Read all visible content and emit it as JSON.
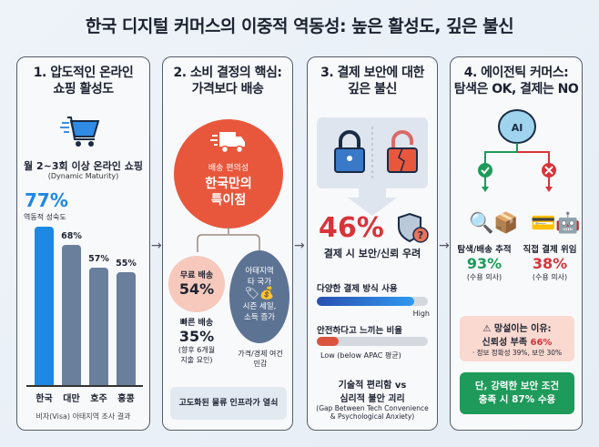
{
  "title": "한국 디지털 커머스의 이중적 역동성: 높은 활성도, 깊은 불신",
  "panel1": {
    "heading1": "1. 압도적인 온라인",
    "heading2": "쇼핑 활성도",
    "icon": "shopping-cart-icon",
    "subtitle": "월 2~3회 이상 온라인 쇼핑",
    "subtitle_en": "(Dynamic Maturity)",
    "highlight": "77%",
    "highlight_label": "역동적 성숙도",
    "source": "비자(Visa) 아태지역 조사 결과"
  },
  "chart_data": {
    "type": "bar",
    "categories": [
      "한국",
      "대만",
      "호주",
      "홍콩"
    ],
    "values": [
      77,
      68,
      57,
      55
    ],
    "labels": [
      "77%",
      "68%",
      "57%",
      "55%"
    ],
    "colors": [
      "#1e88e5",
      "#6a7f9c",
      "#6a7f9c",
      "#6a7f9c"
    ],
    "ylim": [
      0,
      100
    ],
    "grid": false
  },
  "panel2": {
    "heading1": "2. 소비 결정의 핵심:",
    "heading2": "가격보다 배송",
    "circle_sub": "배송 편의성",
    "circle_main1": "한국만의",
    "circle_main2": "특이점",
    "free_label": "무료 배송",
    "free_value": "54%",
    "fast_label": "빠른 배송",
    "fast_value": "35%",
    "fast_note1": "(향후 6개월",
    "fast_note2": "지출 요인)",
    "apac1": "아태지역",
    "apac2": "타 국가",
    "apac3": "시즌 세일,",
    "apac4": "소득 증가",
    "apac_note1": "가격/경제 여건",
    "apac_note2": "민감",
    "key": "고도화된 물류 인프라가 열쇠"
  },
  "panel3": {
    "heading1": "3. 결제 보안에 대한",
    "heading2": "깊은 불신",
    "big": "46%",
    "big_label": "결제 시 보안/신뢰 우려",
    "bar1_label": "다양한 결제 방식 사용",
    "bar1_value": 0.88,
    "bar1_note": "High",
    "bar2_label": "안전하다고 느끼는 비율",
    "bar2_value": 0.2,
    "bar2_note": "Low (below APAC 평균)",
    "gap1": "기술적 편리함 vs",
    "gap2": "심리적 불안 괴리",
    "gap_en1": "(Gap Between Tech Convenience",
    "gap_en2": "& Psychological Anxiety)"
  },
  "panel4": {
    "heading1": "4. 에이전틱 커머스:",
    "heading2": "탐색은 OK, 결제는 NO",
    "ai": "AI",
    "left_label": "탐색/배송 추적",
    "left_value": "93%",
    "left_note": "(수용 의사)",
    "right_label": "직접 결제 위임",
    "right_value": "38%",
    "right_note": "(수용 의사)",
    "warn1": "망설이는 이유:",
    "warn2": "신뢰성 부족 ",
    "warn2_value": "66%",
    "warn3": "· 정보 정확성 39%, 보안 30%",
    "green1": "단, 강력한 보안 조건",
    "green2": "충족 시 87% 수용"
  },
  "colors": {
    "blue": "#1e88e5",
    "red": "#d9333a",
    "green": "#1e9a5a",
    "orange": "#e8573c"
  }
}
